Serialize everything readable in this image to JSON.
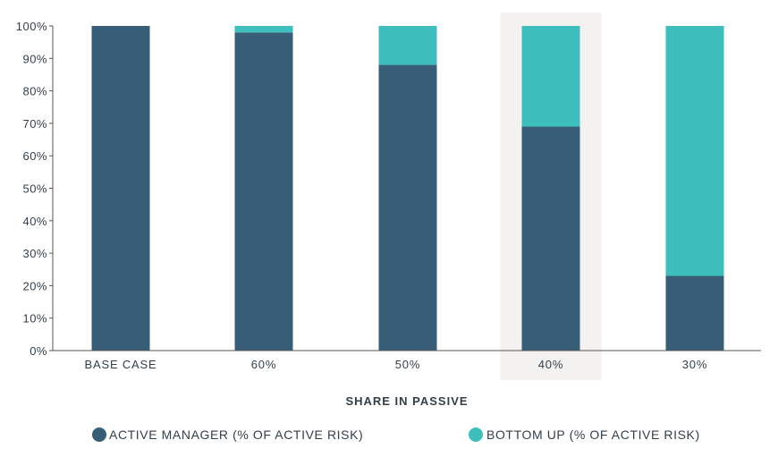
{
  "chart_data": {
    "type": "bar",
    "stacked": true,
    "categories": [
      "BASE CASE",
      "60%",
      "50%",
      "40%",
      "30%"
    ],
    "series": [
      {
        "name": "ACTIVE MANAGER (% OF ACTIVE RISK)",
        "values": [
          100,
          98,
          88,
          69,
          23
        ],
        "color": "#375e76"
      },
      {
        "name": "BOTTOM UP (% OF ACTIVE RISK)",
        "values": [
          0,
          2,
          12,
          31,
          77
        ],
        "color": "#3ebfbd"
      }
    ],
    "y_ticks": [
      "0%",
      "10%",
      "20%",
      "30%",
      "40%",
      "50%",
      "60%",
      "70%",
      "80%",
      "90%",
      "100%"
    ],
    "ylim": [
      0,
      100
    ],
    "xlabel": "SHARE IN PASSIVE",
    "ylabel": "",
    "highlighted_category": "40%",
    "highlight_color": "#f4f2f1",
    "axis_color": "#555555",
    "legend_position": "bottom",
    "grid": false
  }
}
